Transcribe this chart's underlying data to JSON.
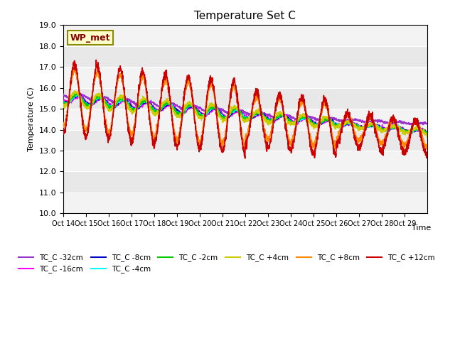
{
  "title": "Temperature Set C",
  "xlabel": "Time",
  "ylabel": "Temperature (C)",
  "ylim": [
    10.0,
    19.0
  ],
  "yticks": [
    10.0,
    11.0,
    12.0,
    13.0,
    14.0,
    15.0,
    16.0,
    17.0,
    18.0,
    19.0
  ],
  "xtick_labels": [
    "Oct 14",
    "Oct 15",
    "Oct 16",
    "Oct 17",
    "Oct 18",
    "Oct 19",
    "Oct 20",
    "Oct 21",
    "Oct 22",
    "Oct 23",
    "Oct 24",
    "Oct 25",
    "Oct 26",
    "Oct 27",
    "Oct 28",
    "Oct 29"
  ],
  "annotation_text": "WP_met",
  "series_colors": {
    "TC_C -32cm": "#9933CC",
    "TC_C -16cm": "#FF00FF",
    "TC_C -8cm": "#0000CC",
    "TC_C -4cm": "#00FFFF",
    "TC_C -2cm": "#00CC00",
    "TC_C +4cm": "#CCCC00",
    "TC_C +8cm": "#FF8800",
    "TC_C +12cm": "#CC0000"
  },
  "plot_bg_color": "#e8e8e8"
}
